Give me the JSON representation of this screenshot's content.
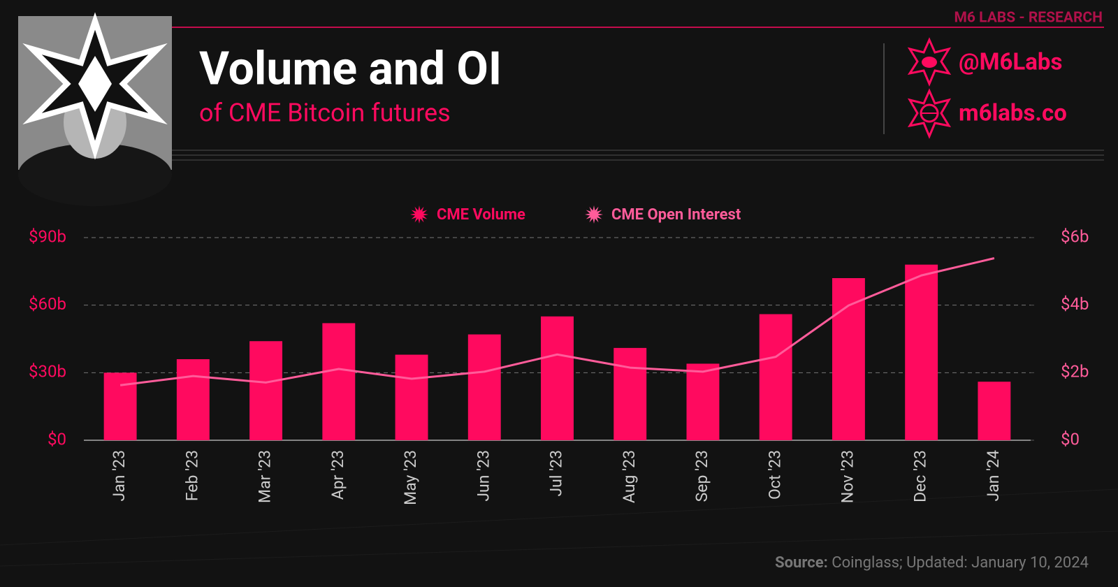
{
  "brand": "M6 LABS - RESEARCH",
  "handle": "@M6Labs",
  "website": "m6labs.co",
  "source_label": "Source:",
  "source_text": "Coinglass; Updated: January 10, 2024",
  "chart_data": {
    "type": "bar_line",
    "title": "Volume and OI",
    "subtitle": "of CME Bitcoin futures",
    "categories": [
      "Jan '23",
      "Feb '23",
      "Mar '23",
      "Apr '23",
      "May '23",
      "Jun '23",
      "Jul '23",
      "Aug '23",
      "Sep '23",
      "Oct '23",
      "Nov '23",
      "Dec '23",
      "Jan '24"
    ],
    "series": [
      {
        "name": "CME Volume",
        "type": "bar",
        "color": "#ff0a5f",
        "values": [
          30,
          36,
          44,
          52,
          38,
          47,
          55,
          41,
          34,
          56,
          72,
          78,
          26
        ]
      },
      {
        "name": "CME Open Interest",
        "type": "line",
        "axis": "y2",
        "color": "#ff5c9a",
        "values": [
          1.63,
          1.9,
          1.71,
          2.11,
          1.82,
          2.03,
          2.54,
          2.15,
          2.03,
          2.47,
          3.99,
          4.88,
          5.39
        ]
      }
    ],
    "ylim": [
      0,
      90
    ],
    "yticks": [
      {
        "value": 0,
        "label": "$0"
      },
      {
        "value": 30,
        "label": "$30b"
      },
      {
        "value": 60,
        "label": "$60b"
      },
      {
        "value": 90,
        "label": "$90b"
      }
    ],
    "y2lim": [
      0,
      6
    ],
    "y2ticks": [
      {
        "value": 0,
        "label": "$0"
      },
      {
        "value": 2,
        "label": "$2b"
      },
      {
        "value": 4,
        "label": "$4b"
      },
      {
        "value": 6,
        "label": "$6b"
      }
    ],
    "grid": true,
    "legend": "top"
  }
}
